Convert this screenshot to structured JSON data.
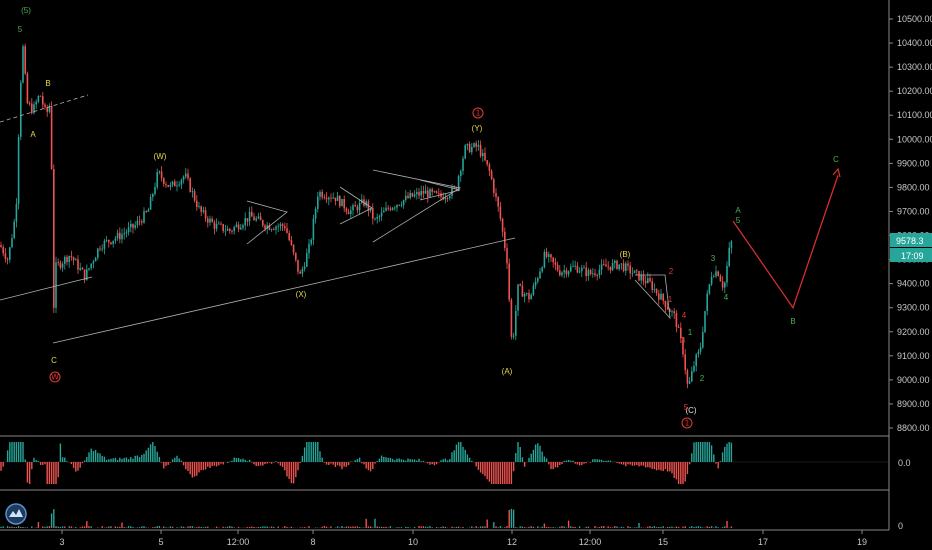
{
  "chart_data": {
    "type": "candlestick",
    "title": "",
    "price_axis": {
      "ticks": [
        "10500.00",
        "10400.00",
        "10300.00",
        "10200.00",
        "10100.00",
        "10000.00",
        "9900.00",
        "9800.00",
        "9700.00",
        "9600.00",
        "9500.00",
        "9400.00",
        "9300.00",
        "9200.00",
        "9100.00",
        "9000.00",
        "8900.00",
        "8800.00"
      ],
      "ylim": [
        8770,
        10570
      ]
    },
    "time_axis": {
      "ticks": [
        "3",
        "5",
        "12:00",
        "8",
        "10",
        "12",
        "12:00",
        "15",
        "17",
        "19"
      ]
    },
    "last_price": {
      "value": "9578.3",
      "countdown": "17:09",
      "color": "#26a69a"
    },
    "oscillator": {
      "zero_label": "0.0"
    },
    "volume": {
      "zero_label": "0"
    },
    "colors": {
      "up": "#26a69a",
      "down": "#ef5350",
      "wave_major": "#4caf50",
      "wave_minor": "#e6d84a",
      "projection": "#d32f2f"
    },
    "wave_labels": [
      {
        "text": "(5)",
        "color": "green"
      },
      {
        "text": "5",
        "color": "green"
      },
      {
        "text": "B",
        "color": "yellow"
      },
      {
        "text": "A",
        "color": "yellow"
      },
      {
        "text": "C",
        "color": "yellow"
      },
      {
        "text": "(W)",
        "color": "yellow"
      },
      {
        "text": "(X)",
        "color": "yellow"
      },
      {
        "text": "(Y)",
        "color": "yellow"
      },
      {
        "text": "(A)",
        "color": "yellow"
      },
      {
        "text": "(B)",
        "color": "yellow"
      },
      {
        "text": "(C)",
        "color": "white"
      },
      {
        "text": "1",
        "color": "green"
      },
      {
        "text": "2",
        "color": "green"
      },
      {
        "text": "3",
        "color": "green"
      },
      {
        "text": "4",
        "color": "green"
      },
      {
        "text": "A",
        "color": "green"
      },
      {
        "text": "5",
        "color": "green"
      },
      {
        "text": "B",
        "color": "green"
      },
      {
        "text": "C",
        "color": "green"
      },
      {
        "text": "1",
        "color": "red"
      },
      {
        "text": "2",
        "color": "red"
      },
      {
        "text": "3",
        "color": "red"
      },
      {
        "text": "4",
        "color": "red"
      },
      {
        "text": "5",
        "color": "red"
      }
    ],
    "circled_labels": [
      {
        "text": "1",
        "color": "red"
      },
      {
        "text": "W",
        "color": "red"
      },
      {
        "text": "1",
        "color": "red"
      }
    ],
    "projection_path": [
      {
        "label": "A",
        "price": 9660
      },
      {
        "label": "B",
        "price": 9300
      },
      {
        "label": "C",
        "price": 9850
      }
    ]
  }
}
